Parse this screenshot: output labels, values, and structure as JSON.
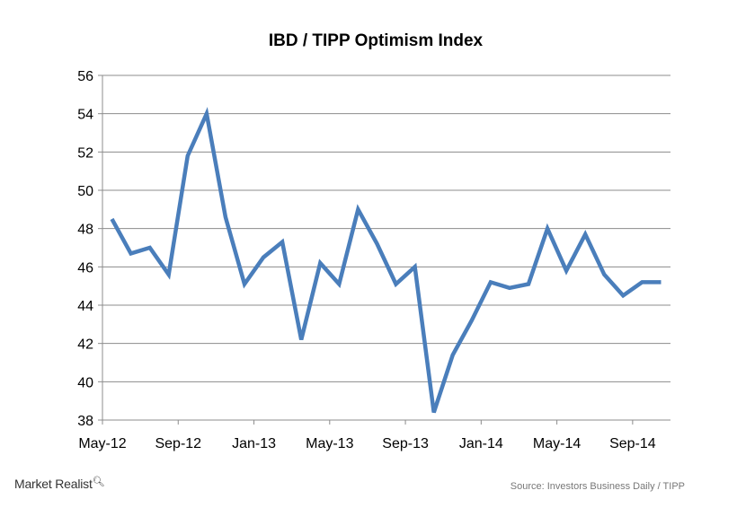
{
  "chart_data": {
    "type": "line",
    "title": "IBD / TIPP Optimism Index",
    "xlabel": "",
    "ylabel": "",
    "ylim": [
      38,
      56
    ],
    "y_ticks": [
      38,
      40,
      42,
      44,
      46,
      48,
      50,
      52,
      54,
      56
    ],
    "x_tick_labels": [
      "May-12",
      "Sep-12",
      "Jan-13",
      "May-13",
      "Sep-13",
      "Jan-14",
      "May-14",
      "Sep-14"
    ],
    "x_tick_every": 4,
    "grid": true,
    "legend": "none",
    "line_color": "#4a7ebb",
    "x": [
      "May-12",
      "Jun-12",
      "Jul-12",
      "Aug-12",
      "Sep-12",
      "Oct-12",
      "Nov-12",
      "Dec-12",
      "Jan-13",
      "Feb-13",
      "Mar-13",
      "Apr-13",
      "May-13",
      "Jun-13",
      "Jul-13",
      "Aug-13",
      "Sep-13",
      "Oct-13",
      "Nov-13",
      "Dec-13",
      "Jan-14",
      "Feb-14",
      "Mar-14",
      "Apr-14",
      "May-14",
      "Jun-14",
      "Jul-14",
      "Aug-14",
      "Sep-14",
      "Oct-14"
    ],
    "series": [
      {
        "values": [
          48.5,
          46.7,
          47.0,
          45.6,
          51.8,
          54.0,
          48.6,
          45.1,
          46.5,
          47.3,
          42.2,
          46.2,
          45.1,
          49.0,
          47.2,
          45.1,
          46.0,
          38.4,
          41.4,
          43.2,
          45.2,
          44.9,
          45.1,
          48.0,
          45.8,
          47.7,
          45.6,
          44.5,
          45.2,
          45.2
        ]
      }
    ]
  },
  "footer": {
    "brand": "Market Realist",
    "brand_icon": "magnifier-icon",
    "source": "Source: Investors Business Daily / TIPP"
  }
}
